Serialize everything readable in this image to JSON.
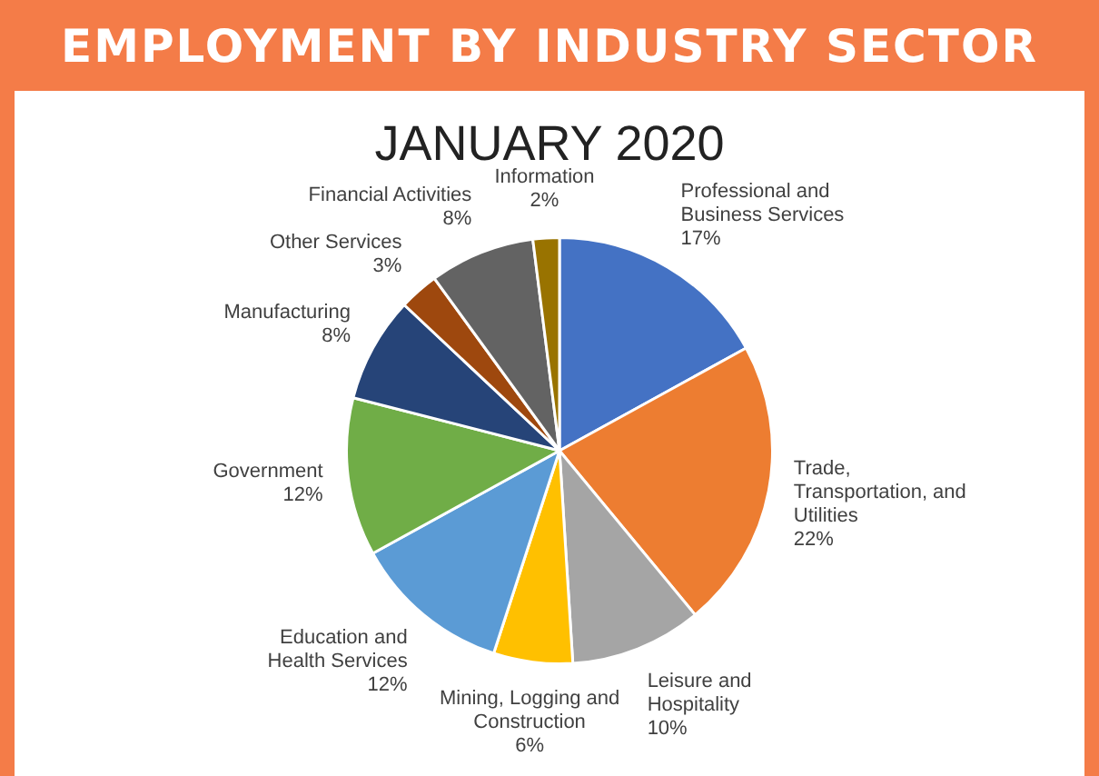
{
  "chart_data": {
    "type": "pie",
    "title": "EMPLOYMENT BY INDUSTRY SECTOR",
    "subtitle": "JANUARY 2020",
    "categories": [
      "Professional and Business Services",
      "Trade, Transportation, and Utilities",
      "Leisure and Hospitality",
      "Mining, Logging and Construction",
      "Education and Health Services",
      "Government",
      "Manufacturing",
      "Other Services",
      "Financial Activities",
      "Information"
    ],
    "values": [
      17,
      22,
      10,
      6,
      12,
      12,
      8,
      3,
      8,
      2
    ],
    "colors": [
      "#4472c4",
      "#ed7d31",
      "#a5a5a5",
      "#ffc000",
      "#5b9bd5",
      "#70ad47",
      "#264478",
      "#9e480e",
      "#636363",
      "#997300"
    ],
    "value_labels": [
      "17%",
      "22%",
      "10%",
      "6%",
      "12%",
      "12%",
      "8%",
      "3%",
      "8%",
      "2%"
    ],
    "legend": false
  }
}
